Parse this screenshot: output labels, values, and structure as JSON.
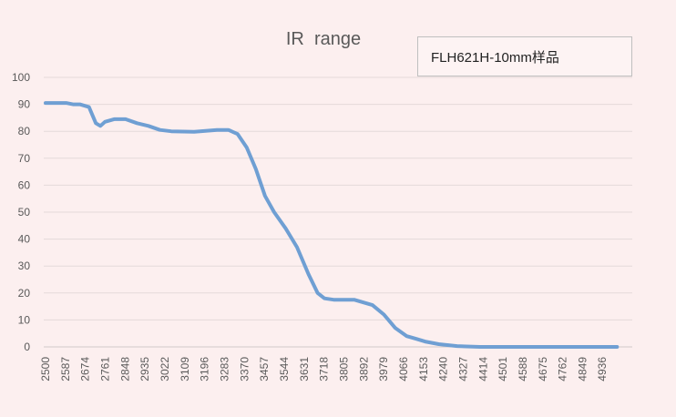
{
  "chart_data": {
    "type": "line",
    "title": "IR  range",
    "legend": "FLH621H-10mm样品",
    "legend_placement": "top-right",
    "xlabel": "",
    "ylabel": "",
    "ylim": [
      0,
      100
    ],
    "yticks": [
      0,
      10,
      20,
      30,
      40,
      50,
      60,
      70,
      80,
      90,
      100
    ],
    "xticks": [
      "2500",
      "2587",
      "2674",
      "2761",
      "2848",
      "2935",
      "3022",
      "3109",
      "3196",
      "3283",
      "3370",
      "3457",
      "3544",
      "3631",
      "3718",
      "3805",
      "3892",
      "3979",
      "4066",
      "4153",
      "4240",
      "4327",
      "4414",
      "4501",
      "4588",
      "4675",
      "4762",
      "4849",
      "4936"
    ],
    "xlim": [
      2500,
      5000
    ],
    "grid": "horizontal",
    "series_color": "#6f9fd3",
    "series": [
      {
        "name": "FLH621H-10mm样品",
        "x": [
          2500,
          2550,
          2590,
          2620,
          2650,
          2690,
          2720,
          2740,
          2760,
          2800,
          2850,
          2900,
          2950,
          3000,
          3050,
          3150,
          3250,
          3300,
          3340,
          3380,
          3420,
          3460,
          3500,
          3550,
          3600,
          3650,
          3690,
          3720,
          3760,
          3850,
          3930,
          3980,
          4030,
          4080,
          4120,
          4160,
          4220,
          4300,
          4400,
          5000
        ],
        "y": [
          90.5,
          90.5,
          90.5,
          90,
          90,
          89,
          83,
          82,
          83.5,
          84.5,
          84.5,
          83,
          82,
          80.5,
          80,
          79.8,
          80.5,
          80.5,
          79,
          74,
          66,
          56,
          50,
          44,
          37,
          27,
          20,
          18,
          17.5,
          17.5,
          15.5,
          12,
          7,
          4,
          3,
          2,
          1,
          0.3,
          0,
          0
        ]
      }
    ]
  }
}
